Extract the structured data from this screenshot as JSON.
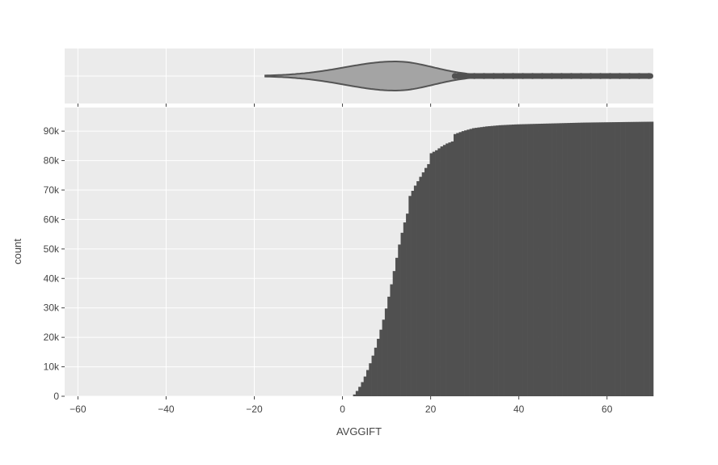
{
  "chart_data": {
    "type": "bar",
    "subtype": "cumulative-histogram-with-violin",
    "xlabel": "AVGGIFT",
    "ylabel": "count",
    "xlim": [
      -63,
      70.5
    ],
    "ylim": [
      0,
      98000
    ],
    "x_ticks": [
      -60,
      -40,
      -20,
      0,
      20,
      40,
      60
    ],
    "x_tick_labels": [
      "−60",
      "−40",
      "−20",
      "0",
      "20",
      "40",
      "60"
    ],
    "y_ticks": [
      0,
      10000,
      20000,
      30000,
      40000,
      50000,
      60000,
      70000,
      80000,
      90000
    ],
    "y_tick_labels": [
      "0",
      "10k",
      "20k",
      "30k",
      "40k",
      "50k",
      "60k",
      "70k",
      "80k",
      "90k"
    ],
    "grid": true,
    "legend": "none",
    "colors": {
      "bars": "#505050",
      "violin_fill": "#a4a4a4",
      "violin_line": "#555555",
      "panel": "#ebebeb",
      "grid": "#ffffff"
    },
    "bin_width": 0.6,
    "cumulative_points": [
      [
        2.4,
        0
      ],
      [
        3.0,
        600
      ],
      [
        3.6,
        1800
      ],
      [
        4.2,
        3200
      ],
      [
        4.8,
        4800
      ],
      [
        5.4,
        6700
      ],
      [
        6.0,
        8900
      ],
      [
        6.6,
        11200
      ],
      [
        7.2,
        13800
      ],
      [
        7.8,
        16500
      ],
      [
        8.4,
        19500
      ],
      [
        9.0,
        22600
      ],
      [
        9.6,
        26000
      ],
      [
        10.2,
        29800
      ],
      [
        10.8,
        33800
      ],
      [
        11.4,
        38000
      ],
      [
        12.0,
        42500
      ],
      [
        12.6,
        47000
      ],
      [
        13.2,
        51500
      ],
      [
        13.8,
        55500
      ],
      [
        14.4,
        59000
      ],
      [
        15.0,
        62000
      ],
      [
        15.6,
        68000
      ],
      [
        16.8,
        71500
      ],
      [
        18.0,
        74500
      ],
      [
        19.2,
        77500
      ],
      [
        19.8,
        78800
      ],
      [
        20.4,
        82500
      ],
      [
        21.6,
        83500
      ],
      [
        22.8,
        84800
      ],
      [
        24.0,
        85800
      ],
      [
        25.2,
        86500
      ],
      [
        25.8,
        89000
      ],
      [
        27.6,
        90000
      ],
      [
        30.0,
        91000
      ],
      [
        33.0,
        91600
      ],
      [
        36.0,
        92000
      ],
      [
        40.0,
        92300
      ],
      [
        45.0,
        92500
      ],
      [
        50.0,
        92700
      ],
      [
        55.0,
        92900
      ],
      [
        60.0,
        93000
      ],
      [
        65.0,
        93100
      ],
      [
        70.5,
        93200
      ]
    ],
    "violin": {
      "min": -17.5,
      "peak": 12.0,
      "whisker_end": 25.5,
      "outliers_range": [
        25.5,
        70.5
      ]
    }
  }
}
